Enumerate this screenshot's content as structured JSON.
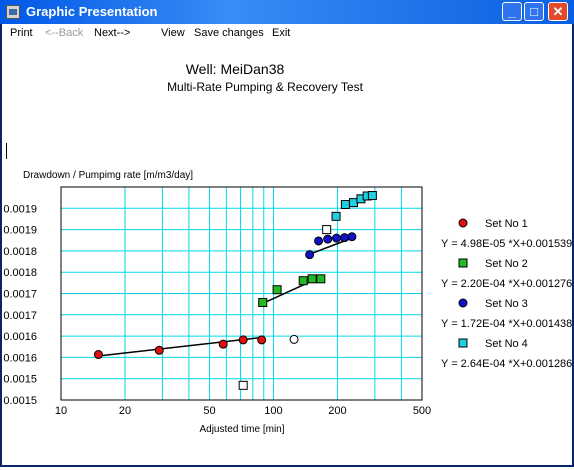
{
  "window": {
    "title": "Graphic Presentation",
    "controls": {
      "minimize": "_",
      "maximize": "□",
      "close": "✕"
    }
  },
  "menu": {
    "print": "Print",
    "back": "<--Back",
    "next": "Next-->",
    "view": "View",
    "save": "Save changes",
    "exit": "Exit"
  },
  "header": {
    "well": "Well: MeiDan38",
    "test": "Multi-Rate Pumping & Recovery Test"
  },
  "chart_data": {
    "type": "scatter",
    "ylabel": "Drawdown / Pumpimg rate [m/m3/day]",
    "xlabel": "Adjusted time [min]",
    "x_scale": "log",
    "xlim": [
      10,
      500
    ],
    "ylim": [
      0.0015,
      0.00195
    ],
    "x_ticks": [
      "10",
      "20",
      "50",
      "100",
      "200",
      "500"
    ],
    "y_ticks": [
      "0.0015",
      "0.0015",
      "0.0016",
      "0.0016",
      "0.0017",
      "0.0017",
      "0.0018",
      "0.0018",
      "0.0019",
      "0.0019"
    ],
    "grid": true,
    "legend_position": "right",
    "series": [
      {
        "name": "Set No 1",
        "marker": "circle",
        "color": "#e01010",
        "x": [
          15,
          29,
          58,
          72,
          88
        ],
        "y": [
          0.001596,
          0.001605,
          0.001618,
          0.001627,
          0.001627
        ],
        "fit": "Y = 4.98E-05 *X+0.001539",
        "fit_line": {
          "x": [
            15,
            88
          ],
          "y": [
            0.001593,
            0.001632
          ]
        },
        "extra_points": [
          {
            "x": 125,
            "y": 0.001628,
            "color": "#ffffff"
          }
        ]
      },
      {
        "name": "Set No 2",
        "marker": "square",
        "color": "#22bb22",
        "x": [
          89,
          104,
          138,
          152,
          167
        ],
        "y": [
          0.001706,
          0.001733,
          0.001752,
          0.001756,
          0.001756
        ],
        "fit": "Y = 2.20E-04 *X+0.001276",
        "fit_line": {
          "x": [
            89,
            167
          ],
          "y": [
            0.001704,
            0.00176
          ]
        },
        "extra_points": [
          {
            "x": 72,
            "y": 0.001531,
            "color": "#ffffff"
          }
        ]
      },
      {
        "name": "Set No 3",
        "marker": "circle",
        "color": "#1010c8",
        "x": [
          148,
          163,
          180,
          198,
          216,
          234
        ],
        "y": [
          0.001807,
          0.001836,
          0.00184,
          0.001842,
          0.001843,
          0.001845
        ],
        "fit": "Y = 1.72E-04 *X+0.001438",
        "fit_line": {
          "x": [
            148,
            234
          ],
          "y": [
            0.001808,
            0.001842
          ]
        },
        "extra_points": []
      },
      {
        "name": "Set No 4",
        "marker": "square",
        "color": "#20d0e0",
        "x": [
          197,
          218,
          238,
          258,
          276,
          292
        ],
        "y": [
          0.001888,
          0.001913,
          0.001917,
          0.001925,
          0.001931,
          0.001932
        ],
        "fit": "Y = 2.64E-04 *X+0.001286",
        "fit_line": null,
        "extra_points": [
          {
            "x": 178,
            "y": 0.00186,
            "color": "#ffffff"
          }
        ]
      }
    ]
  }
}
